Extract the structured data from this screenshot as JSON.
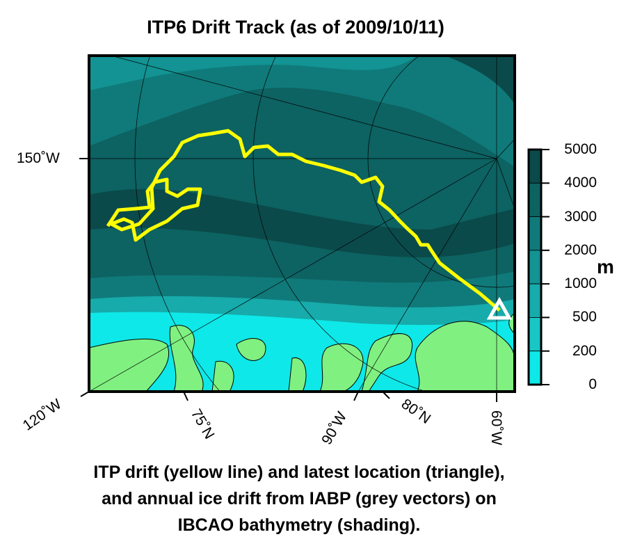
{
  "title": "ITP6 Drift Track (as of 2009/10/11)",
  "caption": [
    "ITP drift (yellow line) and latest location (triangle),",
    "and annual ice drift from IABP (grey vectors) on",
    "IBCAO bathymetry (shading)."
  ],
  "axis_labels": {
    "left": "150˚W",
    "bottom": [
      "120˚W",
      "75˚N",
      "90˚W",
      "80˚N",
      "60˚W"
    ]
  },
  "colorbar": {
    "unit": "m",
    "ticks": [
      "5000",
      "4000",
      "3000",
      "2000",
      "1000",
      "500",
      "200",
      "0"
    ],
    "colors": [
      "#0b4a4a",
      "#0d6262",
      "#107a7a",
      "#139393",
      "#17abab",
      "#19c6c6",
      "#0ee8e8"
    ]
  },
  "colors": {
    "track": "#ffff00",
    "land": "#80f080",
    "latest_location_marker": "#ffffff"
  }
}
